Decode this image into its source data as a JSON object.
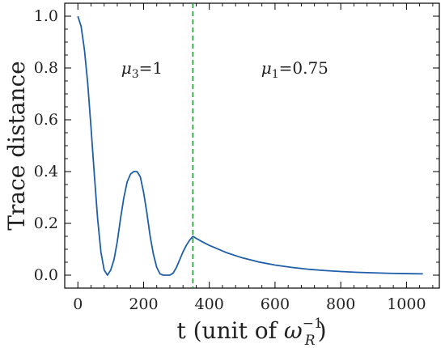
{
  "chart_data": {
    "type": "line",
    "title": "",
    "xlabel": "t (unit of ω_R^-1)",
    "xlabel_parts": {
      "before": "t (unit of ",
      "symbol": "ω",
      "subscript": "R",
      "superscript": "−1",
      "after": ")"
    },
    "ylabel": "Trace distance",
    "xlim": [
      -40,
      1100
    ],
    "ylim": [
      -0.05,
      1.05
    ],
    "xticks": [
      0,
      200,
      400,
      600,
      800,
      1000
    ],
    "xtick_labels": [
      "0",
      "200",
      "400",
      "600",
      "800",
      "1000"
    ],
    "yticks": [
      0.0,
      0.2,
      0.4,
      0.6,
      0.8,
      1.0
    ],
    "ytick_labels": [
      "0.0",
      "0.2",
      "0.4",
      "0.6",
      "0.8",
      "1.0"
    ],
    "grid": false,
    "series": [
      {
        "color": "#1f5ea8",
        "x": [
          0,
          10,
          20,
          30,
          40,
          50,
          60,
          70,
          80,
          90,
          100,
          110,
          120,
          130,
          140,
          150,
          160,
          170,
          175,
          180,
          190,
          200,
          210,
          220,
          230,
          240,
          250,
          260,
          270,
          280,
          290,
          300,
          310,
          320,
          330,
          340,
          350,
          360,
          380,
          400,
          450,
          500,
          550,
          600,
          650,
          700,
          750,
          800,
          850,
          900,
          950,
          1000,
          1050
        ],
        "y": [
          1.0,
          0.96,
          0.87,
          0.74,
          0.57,
          0.39,
          0.22,
          0.09,
          0.02,
          0.0,
          0.02,
          0.06,
          0.13,
          0.22,
          0.3,
          0.36,
          0.39,
          0.4,
          0.4,
          0.4,
          0.38,
          0.32,
          0.24,
          0.15,
          0.08,
          0.03,
          0.005,
          0.0,
          0.0,
          0.0,
          0.008,
          0.03,
          0.06,
          0.09,
          0.115,
          0.135,
          0.15,
          0.142,
          0.128,
          0.115,
          0.088,
          0.067,
          0.051,
          0.039,
          0.03,
          0.023,
          0.018,
          0.014,
          0.011,
          0.009,
          0.007,
          0.006,
          0.005
        ]
      }
    ],
    "vline": {
      "x": 350,
      "color": "#1a8a2a",
      "style": "dashed"
    },
    "annotations": [
      {
        "symbol": "μ",
        "subscript": "3",
        "value": "=1",
        "x": 195,
        "y": 0.8
      },
      {
        "symbol": "μ",
        "subscript": "1",
        "value": "=0.75",
        "x": 660,
        "y": 0.8
      }
    ]
  }
}
